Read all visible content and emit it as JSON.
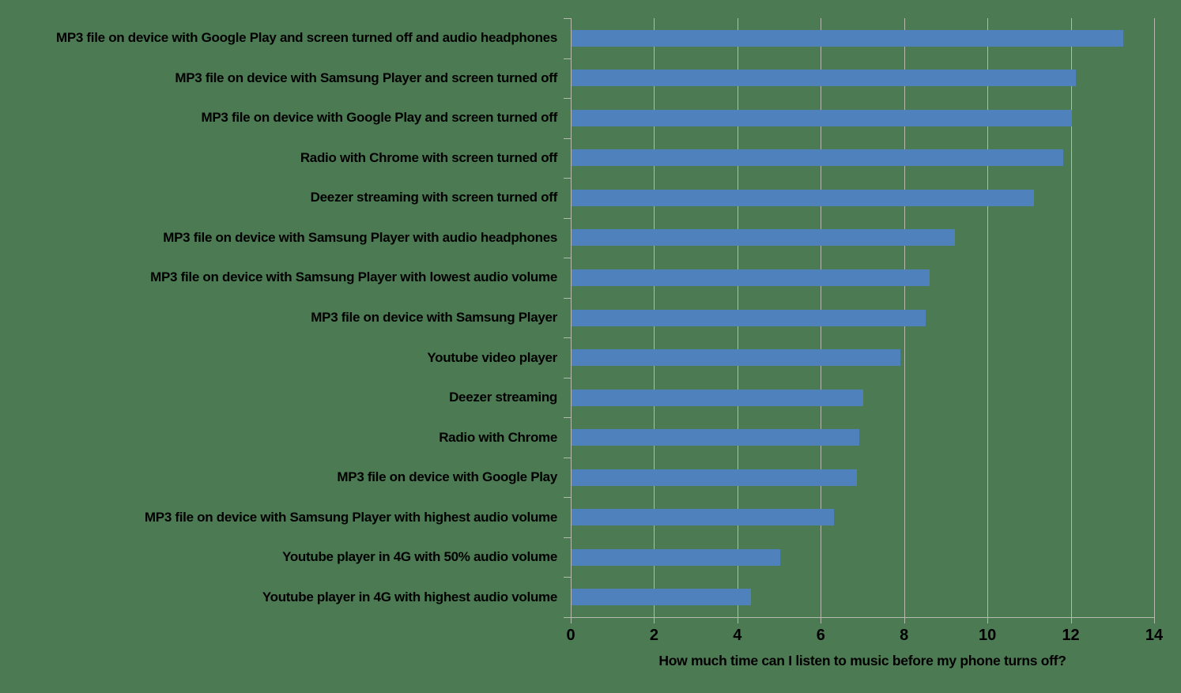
{
  "chart_data": {
    "type": "bar",
    "orientation": "horizontal",
    "title": "",
    "xlabel": "How much time can I listen to music before my phone turns off?",
    "ylabel": "",
    "xlim": [
      0,
      14
    ],
    "xticks": [
      0,
      2,
      4,
      6,
      8,
      10,
      12,
      14
    ],
    "xticklabels": [
      "0",
      "2",
      "4",
      "6",
      "8",
      "10",
      "12",
      "14"
    ],
    "grid": true,
    "legend": false,
    "categories": [
      "MP3 file on device with Google Play and screen turned off and audio headphones",
      "MP3 file on device with Samsung Player and screen turned off",
      "MP3 file on device with Google Play and screen turned off",
      "Radio with Chrome with screen turned off",
      "Deezer streaming with screen turned off",
      "MP3 file on device with Samsung Player with audio headphones",
      "MP3 file on device with Samsung Player with lowest audio volume",
      "MP3 file on device with Samsung Player",
      "Youtube video player",
      "Deezer streaming",
      "Radio with Chrome",
      "MP3 file on device with Google Play",
      "MP3 file on device with Samsung Player with highest audio volume",
      "Youtube player in 4G with 50% audio volume",
      "Youtube player in 4G with highest audio volume"
    ],
    "values": [
      13.25,
      12.1,
      12.0,
      11.8,
      11.1,
      9.2,
      8.6,
      8.5,
      7.9,
      7.0,
      6.9,
      6.85,
      6.3,
      5.0,
      4.3
    ],
    "colors": {
      "bar": "#4F81BD",
      "background": "#4C7A53",
      "gridline": "#B5BAAF",
      "text": "#000000"
    }
  }
}
